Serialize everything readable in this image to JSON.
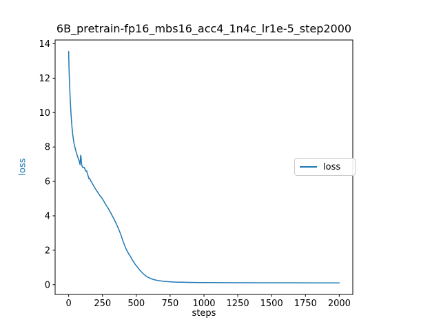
{
  "figure": {
    "title": "6B_pretrain-fp16_mbs16_acc4_1n4c_lr1e-5_step2000",
    "xlabel": "steps",
    "ylabel": "loss",
    "ylabel_color": "#1f77b4",
    "background_color": "#ffffff",
    "spine_color": "#000000",
    "legend": {
      "position": "center right",
      "entries": [
        {
          "label": "loss",
          "color": "#1f77b4"
        }
      ]
    }
  },
  "chart_data": {
    "type": "line",
    "title": "6B_pretrain-fp16_mbs16_acc4_1n4c_lr1e-5_step2000",
    "xlabel": "steps",
    "ylabel": "loss",
    "grid": false,
    "legend_entries": [
      "loss"
    ],
    "legend_position": "center right",
    "x_ticks": [
      0,
      250,
      500,
      750,
      1000,
      1250,
      1500,
      1750,
      2000
    ],
    "y_ticks": [
      0,
      2,
      4,
      6,
      8,
      10,
      12,
      14
    ],
    "xlim": [
      -100,
      2100
    ],
    "ylim": [
      -0.57,
      14.22
    ],
    "series": [
      {
        "name": "loss",
        "color": "#1f77b4",
        "linewidth": 1.5,
        "points": [
          [
            0,
            13.55
          ],
          [
            3,
            12.55
          ],
          [
            6,
            11.8
          ],
          [
            10,
            11.05
          ],
          [
            14,
            10.4
          ],
          [
            18,
            9.85
          ],
          [
            22,
            9.4
          ],
          [
            26,
            9.05
          ],
          [
            30,
            8.75
          ],
          [
            35,
            8.45
          ],
          [
            40,
            8.2
          ],
          [
            46,
            8.0
          ],
          [
            52,
            7.82
          ],
          [
            58,
            7.65
          ],
          [
            64,
            7.5
          ],
          [
            70,
            7.35
          ],
          [
            76,
            7.22
          ],
          [
            80,
            7.12
          ],
          [
            84,
            6.98
          ],
          [
            88,
            7.45
          ],
          [
            90,
            7.52
          ],
          [
            93,
            7.25
          ],
          [
            97,
            6.92
          ],
          [
            102,
            6.84
          ],
          [
            108,
            6.8
          ],
          [
            114,
            6.82
          ],
          [
            120,
            6.72
          ],
          [
            126,
            6.6
          ],
          [
            132,
            6.62
          ],
          [
            138,
            6.48
          ],
          [
            144,
            6.32
          ],
          [
            150,
            6.15
          ],
          [
            156,
            6.17
          ],
          [
            162,
            6.05
          ],
          [
            170,
            5.95
          ],
          [
            178,
            5.83
          ],
          [
            186,
            5.72
          ],
          [
            194,
            5.62
          ],
          [
            202,
            5.52
          ],
          [
            212,
            5.4
          ],
          [
            222,
            5.28
          ],
          [
            232,
            5.16
          ],
          [
            242,
            5.06
          ],
          [
            252,
            4.96
          ],
          [
            262,
            4.82
          ],
          [
            272,
            4.68
          ],
          [
            282,
            4.56
          ],
          [
            292,
            4.44
          ],
          [
            302,
            4.3
          ],
          [
            312,
            4.16
          ],
          [
            322,
            4.0
          ],
          [
            332,
            3.86
          ],
          [
            342,
            3.7
          ],
          [
            352,
            3.54
          ],
          [
            362,
            3.36
          ],
          [
            372,
            3.18
          ],
          [
            382,
            2.98
          ],
          [
            392,
            2.76
          ],
          [
            402,
            2.52
          ],
          [
            412,
            2.32
          ],
          [
            422,
            2.12
          ],
          [
            432,
            1.96
          ],
          [
            442,
            1.82
          ],
          [
            452,
            1.7
          ],
          [
            462,
            1.56
          ],
          [
            472,
            1.42
          ],
          [
            482,
            1.3
          ],
          [
            492,
            1.18
          ],
          [
            502,
            1.08
          ],
          [
            512,
            0.98
          ],
          [
            522,
            0.88
          ],
          [
            532,
            0.79
          ],
          [
            542,
            0.71
          ],
          [
            552,
            0.63
          ],
          [
            562,
            0.56
          ],
          [
            574,
            0.49
          ],
          [
            586,
            0.43
          ],
          [
            600,
            0.38
          ],
          [
            615,
            0.33
          ],
          [
            630,
            0.29
          ],
          [
            648,
            0.26
          ],
          [
            666,
            0.23
          ],
          [
            686,
            0.21
          ],
          [
            706,
            0.19
          ],
          [
            730,
            0.175
          ],
          [
            755,
            0.162
          ],
          [
            780,
            0.152
          ],
          [
            810,
            0.145
          ],
          [
            845,
            0.138
          ],
          [
            885,
            0.132
          ],
          [
            930,
            0.127
          ],
          [
            980,
            0.122
          ],
          [
            1040,
            0.118
          ],
          [
            1120,
            0.115
          ],
          [
            1220,
            0.112
          ],
          [
            1340,
            0.11
          ],
          [
            1460,
            0.108
          ],
          [
            1580,
            0.107
          ],
          [
            1700,
            0.106
          ],
          [
            1820,
            0.105
          ],
          [
            1920,
            0.105
          ],
          [
            2000,
            0.104
          ]
        ]
      }
    ]
  }
}
